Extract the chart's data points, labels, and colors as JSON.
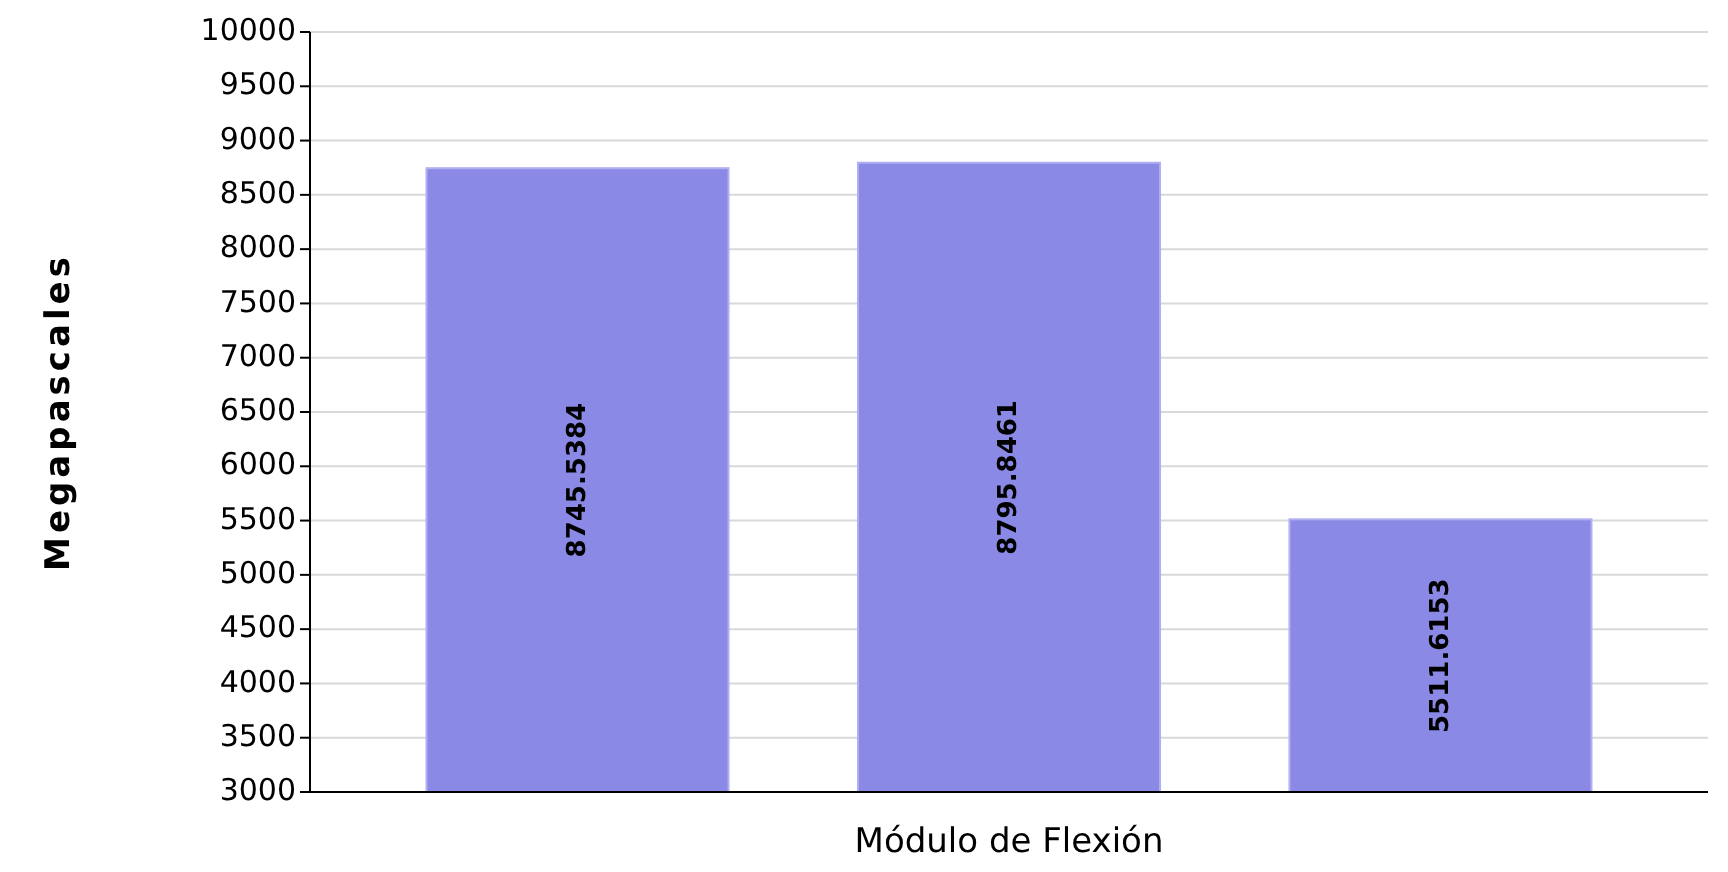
{
  "chart_data": {
    "type": "bar",
    "xlabel": "Módulo de Flexión",
    "ylabel": "Megapascales",
    "categories": [
      null,
      null,
      null
    ],
    "values": [
      8745.5384,
      8795.8461,
      5511.6153
    ],
    "color": "#8a8ae6",
    "ylim": [
      3000,
      10000
    ],
    "yticks": [
      3000,
      3500,
      4000,
      4500,
      5000,
      5500,
      6000,
      6500,
      7000,
      7500,
      8000,
      8500,
      9000,
      9500,
      10000
    ],
    "grid": "y",
    "data_labels": true
  }
}
